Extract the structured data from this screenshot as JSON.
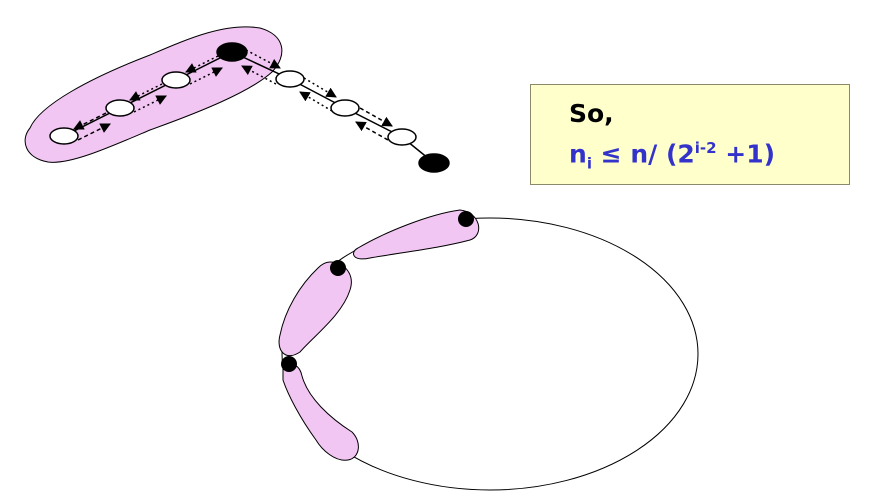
{
  "note": {
    "line1": "So,",
    "formula_n": "n",
    "formula_i_sub": "i",
    "formula_mid": " ≤ n/ (2",
    "formula_exp": "i-2",
    "formula_end": " +1)"
  },
  "colors": {
    "region_fill": "#f2c6f2",
    "note_background": "#ffffcc",
    "formula_text": "#3333cc",
    "node_black": "#000000",
    "node_white": "#ffffff"
  }
}
